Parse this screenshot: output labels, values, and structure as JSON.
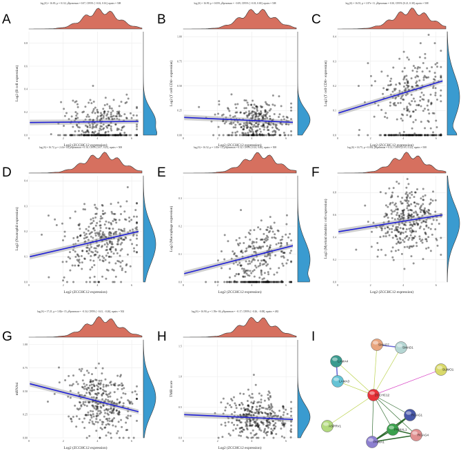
{
  "panel_letters": [
    "A",
    "B",
    "C",
    "D",
    "E",
    "F",
    "G",
    "H",
    "I"
  ],
  "chart_data": [
    {
      "panel": "A",
      "type": "scatter",
      "stats": "logₑ(S) = 16.83, p = 0.112, ρ̂Spearman = 0.07, CI95% [−0.02, 0.16], npairs = 508",
      "xlabel": "Log2 (ZCCHC12 expression)",
      "ylabel": "Log2 (B cell expression)",
      "xticks": [
        "0",
        "2",
        "4",
        "6"
      ],
      "yticks": [
        "0.0",
        "0.2",
        "0.4",
        "0.6",
        "0.8"
      ],
      "xlim": [
        0,
        6.6
      ],
      "ylim": [
        0,
        0.9
      ],
      "fit": {
        "y0": 0.11,
        "y1": 0.12
      },
      "cloud": {
        "xmean": 4.2,
        "xsd": 1.0,
        "ymean": 0.12,
        "ysd": 0.1,
        "zero_fraction": 0.3
      }
    },
    {
      "panel": "B",
      "type": "scatter",
      "stats": "logₑ(S) = 16.99, p = 0.059, ρ̂Spearman = −0.09, CI95% [−0.18, 0.00], npairs = 508",
      "xlabel": "Log2 (ZCCHC12 expression)",
      "ylabel": "Log2 (T cell CD4+ expression)",
      "xticks": [
        "0",
        "2",
        "4",
        "6"
      ],
      "yticks": [
        "0.00",
        "0.25",
        "0.50",
        "0.75",
        "1.00"
      ],
      "xlim": [
        0,
        6.6
      ],
      "ylim": [
        0,
        1.05
      ],
      "fit": {
        "y0": 0.18,
        "y1": 0.13
      },
      "cloud": {
        "xmean": 4.3,
        "xsd": 1.0,
        "ymean": 0.16,
        "ysd": 0.1,
        "zero_fraction": 0.1
      }
    },
    {
      "panel": "C",
      "type": "scatter",
      "stats": "logₑ(S) = 16.55, p = 1.87e−11, ρ̂Spearman = 0.30, CI95% [0.21, 0.38], npairs = 508",
      "xlabel": "Log2 (ZCCHC12 expression)",
      "ylabel": "Log2 (T cell CD8+ expression)",
      "xticks": [
        "0",
        "2",
        "4",
        "6"
      ],
      "yticks": [
        "0.0",
        "0.1",
        "0.2",
        "0.3",
        "0.4"
      ],
      "xlim": [
        0,
        6.6
      ],
      "ylim": [
        0,
        0.42
      ],
      "fit": {
        "y0": 0.09,
        "y1": 0.22
      },
      "cloud": {
        "xmean": 4.5,
        "xsd": 1.1,
        "ymean": 0.17,
        "ysd": 0.08,
        "zero_fraction": 0.35
      }
    },
    {
      "panel": "D",
      "type": "scatter",
      "stats": "logₑ(S) = 16.72, p = 2.41e−04, ρ̂Spearman = 0.16, CI95% [0.07, 0.25], npairs = 508",
      "xlabel": "Log2 (ZCCHC12 expression)",
      "ylabel": "Log2 (Neutrophil expression)",
      "xticks": [
        "0",
        "2",
        "4",
        "6"
      ],
      "yticks": [
        "0.0",
        "0.1",
        "0.2",
        "0.3",
        "0.4"
      ],
      "xlim": [
        0,
        6.6
      ],
      "ylim": [
        0,
        0.42
      ],
      "fit": {
        "y0": 0.1,
        "y1": 0.2
      },
      "cloud": {
        "xmean": 4.3,
        "xsd": 1.1,
        "ymean": 0.17,
        "ysd": 0.07,
        "zero_fraction": 0.02
      }
    },
    {
      "panel": "E",
      "type": "scatter",
      "stats": "logₑ(S) = 16.52, p = 1.85e−13, ρ̂Spearman = 0.32, CI95% [0.24, 0.40], npairs = 508",
      "xlabel": "Log2 (ZCCHC12 expression)",
      "ylabel": "Log2 (Macrophage expression)",
      "xticks": [
        "0",
        "2",
        "4",
        "6"
      ],
      "yticks": [
        "0.0",
        "0.1",
        "0.2",
        "0.3"
      ],
      "xlim": [
        0,
        6.6
      ],
      "ylim": [
        0,
        0.38
      ],
      "fit": {
        "y0": 0.03,
        "y1": 0.13
      },
      "cloud": {
        "xmean": 4.5,
        "xsd": 1.0,
        "ymean": 0.1,
        "ysd": 0.06,
        "zero_fraction": 0.3
      }
    },
    {
      "panel": "F",
      "type": "scatter",
      "stats": "logₑ(S) = 16.75, p = 0.002, ρ̂Spearman = 0.14, CI95% [0.05, 0.22], npairs = 508",
      "xlabel": "Log2 (ZCCHC12 expression)",
      "ylabel": "Log2 (Myeloid dendritic cell expression)",
      "xticks": [
        "0",
        "2",
        "4",
        "6"
      ],
      "yticks": [
        "0.0",
        "0.2",
        "0.4",
        "0.6",
        "0.8"
      ],
      "xlim": [
        0,
        6.6
      ],
      "ylim": [
        0,
        0.95
      ],
      "fit": {
        "y0": 0.45,
        "y1": 0.6
      },
      "cloud": {
        "xmean": 4.3,
        "xsd": 1.0,
        "ymean": 0.55,
        "ysd": 0.15,
        "zero_fraction": 0.0
      }
    },
    {
      "panel": "G",
      "type": "scatter",
      "stats": "logₑ(S) = 17.21, p = 3.82e−15, ρ̂Spearman = −0.34, CI95% [−0.41, −0.26], npairs = 502",
      "xlabel": "Log2 (ZCCHC12 expression)",
      "ylabel": "mRNAsi",
      "xticks": [
        "0",
        "2",
        "4",
        "6"
      ],
      "yticks": [
        "0.00",
        "0.25",
        "0.50",
        "0.75",
        "1.00"
      ],
      "xlim": [
        0,
        6.6
      ],
      "ylim": [
        0,
        1.05
      ],
      "fit": {
        "y0": 0.58,
        "y1": 0.28
      },
      "cloud": {
        "xmean": 4.3,
        "xsd": 1.0,
        "ymean": 0.45,
        "ysd": 0.17,
        "zero_fraction": 0.0
      }
    },
    {
      "panel": "H",
      "type": "scatter",
      "stats": "logₑ(S) = 16.90, p = 1.59e−04, ρ̂Spearman = −0.17, CI95% [−0.26, −0.08], npairs = 482",
      "xlabel": "Log2 (ZCCHC12 expression)",
      "ylabel": "TMB score",
      "xticks": [
        "0",
        "2",
        "4",
        "6"
      ],
      "yticks": [
        "0.0",
        "0.5",
        "1.0",
        "1.5"
      ],
      "xlim": [
        0,
        6.6
      ],
      "ylim": [
        0,
        1.6
      ],
      "fit": {
        "y0": 0.38,
        "y1": 0.3
      },
      "cloud": {
        "xmean": 4.3,
        "xsd": 1.0,
        "ymean": 0.32,
        "ysd": 0.18,
        "zero_fraction": 0.0
      }
    }
  ],
  "network": {
    "nodes": [
      {
        "id": "SMAD7",
        "color": "#e8a57e"
      },
      {
        "id": "SMAD1",
        "color": "#b5d6d3"
      },
      {
        "id": "LAMA4",
        "color": "#3a9a8e"
      },
      {
        "id": "LAMA3",
        "color": "#65c3d5"
      },
      {
        "id": "SUMO1",
        "color": "#d9d96a"
      },
      {
        "id": "ZCCHC12",
        "color": "#e8333a"
      },
      {
        "id": "RGAG1",
        "color": "#4757a8"
      },
      {
        "id": "RGAG4",
        "color": "#e09090"
      },
      {
        "id": "PNMAL1",
        "color": "#3aa14c"
      },
      {
        "id": "PNMA1",
        "color": "#8c7fcf"
      },
      {
        "id": "ASPRV1",
        "color": "#b2d97e"
      }
    ],
    "edges": [
      [
        "ZCCHC12",
        "SMAD7"
      ],
      [
        "ZCCHC12",
        "SMAD1"
      ],
      [
        "ZCCHC12",
        "LAMA4"
      ],
      [
        "ZCCHC12",
        "LAMA3"
      ],
      [
        "ZCCHC12",
        "SUMO1"
      ],
      [
        "ZCCHC12",
        "RGAG1"
      ],
      [
        "ZCCHC12",
        "RGAG4"
      ],
      [
        "ZCCHC12",
        "PNMAL1"
      ],
      [
        "ZCCHC12",
        "PNMA1"
      ],
      [
        "ZCCHC12",
        "ASPRV1"
      ],
      [
        "SMAD7",
        "SMAD1"
      ],
      [
        "LAMA4",
        "LAMA3"
      ],
      [
        "PNMA1",
        "PNMAL1"
      ],
      [
        "PNMA1",
        "RGAG1"
      ],
      [
        "PNMAL1",
        "RGAG1"
      ],
      [
        "PNMAL1",
        "RGAG4"
      ],
      [
        "PNMA1",
        "RGAG4"
      ]
    ]
  }
}
